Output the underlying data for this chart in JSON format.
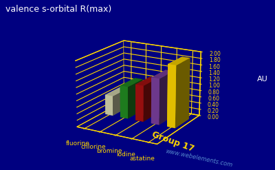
{
  "title": "valence s-orbital R(max)",
  "elements": [
    "fluorine",
    "chlorine",
    "bromine",
    "iodine",
    "astatine"
  ],
  "values": [
    0.62,
    1.0,
    1.12,
    1.42,
    1.9
  ],
  "colors": [
    "#d8d8b0",
    "#228B22",
    "#AA1111",
    "#7B3F9E",
    "#FFD700"
  ],
  "ylabel": "AU",
  "xlabel": "Group 17",
  "ylim": [
    0,
    2.0
  ],
  "yticks": [
    0.0,
    0.2,
    0.4,
    0.6,
    0.8,
    1.0,
    1.2,
    1.4,
    1.6,
    1.8,
    2.0
  ],
  "background_color": "#000080",
  "grid_color": "#FFD700",
  "watermark": "www.webelements.com",
  "title_color": "#FFFFFF",
  "label_color": "#FFD700",
  "tick_color": "#FFD700",
  "axis_label_color": "#FFFFFF",
  "elev": 18,
  "azim": -60
}
